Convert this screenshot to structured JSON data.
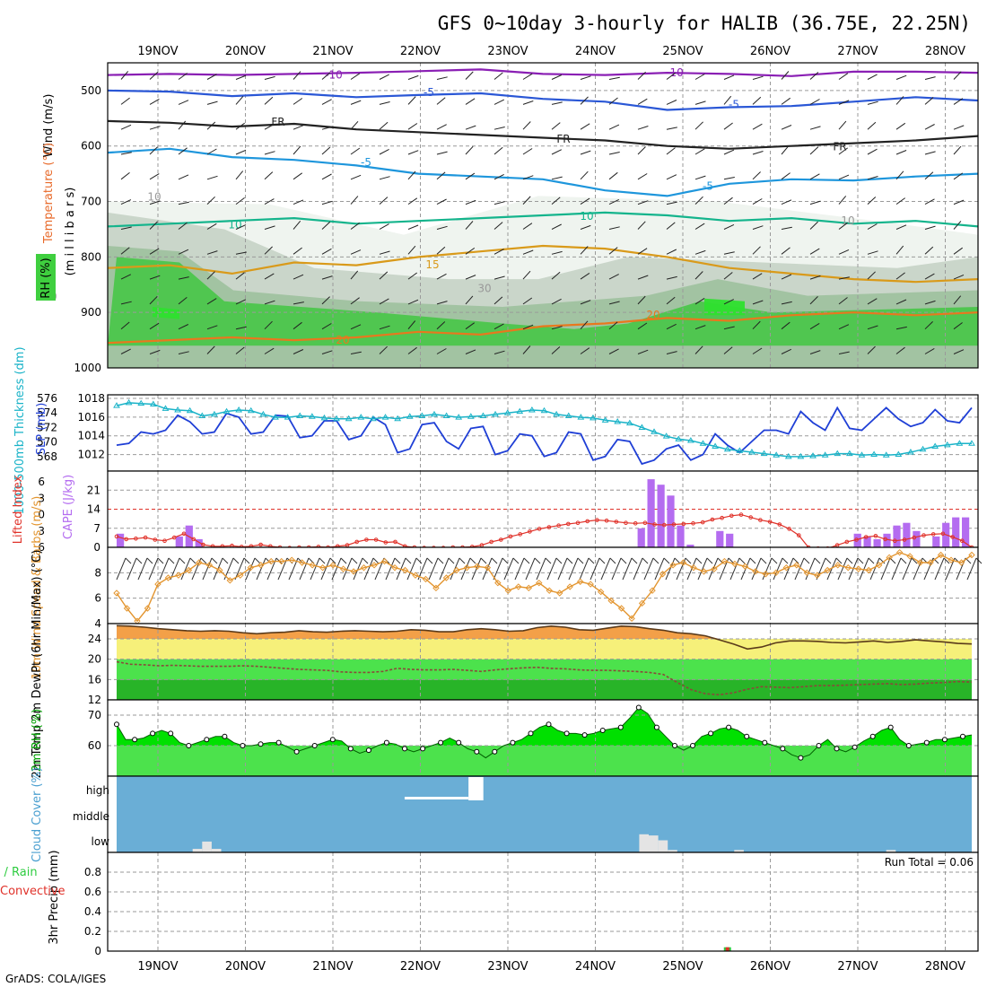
{
  "title": "GFS 0~10day 3-hourly for HALIB (36.75E, 22.25N)",
  "footer": "GrADS: COLA/IGES",
  "dates": [
    "19NOV",
    "20NOV",
    "21NOV",
    "22NOV",
    "23NOV",
    "24NOV",
    "25NOV",
    "26NOV",
    "27NOV",
    "28NOV"
  ],
  "colors": {
    "grid": "#9a9a9a",
    "slp": "#1f3fd6",
    "thickness": "#1ab3c8",
    "li": "#e0322a",
    "cape": "#b46cf0",
    "wind": "#e3952f",
    "temp": "#f3a048",
    "dewfill": "#3fcf3f",
    "rh": "#00e000",
    "cloud": "#6aaed6",
    "rain": "#2ecc40",
    "conv": "#e0322a"
  },
  "chart_data": [
    {
      "panel": "upper-air",
      "type": "contour",
      "ylabel_parts": {
        "wind": "Wind (m/s)",
        "temp": "Temperature (°C)",
        "rh": "RH (%)",
        "unit": "(m i l l i b a r s)"
      },
      "yticks": [
        500,
        600,
        700,
        800,
        900,
        1000
      ],
      "ylim": [
        450,
        1000
      ],
      "isotherm_labels": [
        "-10",
        "-10",
        "-5",
        "-5",
        "FR",
        "FR",
        "FR",
        "-5",
        "-5",
        "10",
        "10",
        "15",
        "20",
        "20",
        "30",
        "30",
        "10",
        "10"
      ],
      "isotherms": [
        {
          "label": "-10",
          "color": "#8a1fb4",
          "p": [
            472,
            470,
            472,
            470,
            468,
            465,
            462,
            470,
            472,
            468,
            470,
            474,
            466,
            466,
            468
          ]
        },
        {
          "label": "-5",
          "color": "#2a57d6",
          "p": [
            500,
            502,
            510,
            505,
            512,
            508,
            505,
            515,
            520,
            535,
            530,
            528,
            520,
            512,
            518
          ]
        },
        {
          "label": "FR",
          "color": "#222222",
          "p": [
            555,
            558,
            565,
            560,
            570,
            575,
            580,
            585,
            590,
            600,
            605,
            600,
            595,
            590,
            582
          ]
        },
        {
          "label": "5",
          "color": "#1e96dc",
          "p": [
            612,
            605,
            620,
            625,
            635,
            650,
            655,
            660,
            680,
            690,
            668,
            660,
            662,
            655,
            650
          ]
        },
        {
          "label": "10",
          "color": "#14b48c",
          "p": [
            745,
            740,
            735,
            730,
            740,
            735,
            730,
            725,
            720,
            725,
            735,
            730,
            740,
            735,
            745
          ]
        },
        {
          "label": "15",
          "color": "#d99a1a",
          "p": [
            820,
            815,
            830,
            810,
            815,
            800,
            790,
            780,
            785,
            800,
            820,
            830,
            840,
            845,
            840
          ]
        },
        {
          "label": "20",
          "color": "#e8781e",
          "p": [
            955,
            950,
            945,
            950,
            945,
            935,
            940,
            925,
            920,
            910,
            915,
            905,
            900,
            905,
            900
          ]
        }
      ],
      "rh_shading_levels": [
        30,
        50,
        70,
        90
      ]
    },
    {
      "panel": "slp-thickness",
      "type": "line",
      "ylabel_left": "1000-500mb Thickness (dm)",
      "ylabel_right": "SLP (mb)",
      "yticks_left": [
        568,
        570,
        572,
        574,
        576
      ],
      "yticks_right": [
        1012,
        1014,
        1016,
        1018
      ],
      "series": [
        {
          "name": "SLP (mb)",
          "values": [
            1013.0,
            1013.2,
            1014.4,
            1014.2,
            1014.6,
            1016.2,
            1015.5,
            1014.2,
            1014.4,
            1016.4,
            1016.0,
            1014.2,
            1014.4,
            1016.2,
            1016.1,
            1013.8,
            1014.0,
            1015.6,
            1015.6,
            1013.6,
            1014.0,
            1016.0,
            1015.2,
            1012.2,
            1012.6,
            1015.2,
            1015.4,
            1013.4,
            1012.6,
            1014.8,
            1015.0,
            1012.0,
            1012.4,
            1014.2,
            1014.0,
            1011.8,
            1012.2,
            1014.4,
            1014.2,
            1011.4,
            1011.8,
            1013.6,
            1013.4,
            1011.0,
            1011.4,
            1012.6,
            1013.0,
            1011.4,
            1012.0,
            1014.2,
            1013.0,
            1012.2,
            1013.4,
            1014.6,
            1014.6,
            1014.2,
            1016.6,
            1015.4,
            1014.6,
            1017.0,
            1014.8,
            1014.6,
            1015.8,
            1017.0,
            1015.8,
            1015.0,
            1015.4,
            1016.8,
            1015.6,
            1015.4,
            1017.0
          ]
        },
        {
          "name": "Thickness (dm)",
          "values": [
            575.0,
            575.4,
            575.3,
            575.2,
            574.6,
            574.4,
            574.3,
            573.6,
            573.8,
            574.2,
            574.4,
            574.3,
            573.8,
            573.4,
            573.4,
            573.6,
            573.5,
            573.3,
            573.2,
            573.2,
            573.4,
            573.2,
            573.4,
            573.2,
            573.5,
            573.6,
            573.8,
            573.6,
            573.4,
            573.5,
            573.6,
            573.8,
            574.0,
            574.2,
            574.4,
            574.3,
            573.8,
            573.6,
            573.4,
            573.3,
            573.0,
            572.8,
            572.6,
            572.0,
            571.4,
            570.8,
            570.4,
            570.2,
            569.8,
            569.4,
            569.0,
            568.8,
            568.6,
            568.4,
            568.2,
            568.0,
            568.0,
            568.1,
            568.2,
            568.4,
            568.4,
            568.2,
            568.3,
            568.2,
            568.3,
            568.6,
            569.0,
            569.4,
            569.6,
            569.8,
            569.8
          ]
        }
      ]
    },
    {
      "panel": "cape-li",
      "type": "bar+line",
      "ylabel_left": "Lifted Index",
      "ylabel_right": "CAPE (J/kg)",
      "yticks_li": [
        -6,
        -3,
        0,
        3,
        6
      ],
      "yticks_cape": [
        0,
        7,
        14,
        21
      ],
      "cape": [
        5,
        0,
        0,
        0,
        0,
        0,
        4,
        8,
        3,
        0,
        0,
        0,
        0,
        0,
        0,
        0,
        0,
        0,
        0,
        0,
        0,
        0,
        0,
        0,
        0,
        0,
        0,
        0,
        0,
        0,
        0,
        0,
        0,
        0,
        0,
        0,
        0,
        0,
        0,
        0,
        0,
        0,
        0,
        0,
        0,
        0,
        0,
        0,
        0,
        0,
        0,
        0,
        0,
        7,
        25,
        23,
        19,
        8,
        1,
        0,
        0,
        6,
        5,
        0,
        0,
        0,
        0,
        0,
        0,
        0,
        0,
        0,
        0,
        0,
        0,
        5,
        4,
        3,
        5,
        8,
        9,
        6,
        0,
        4,
        9,
        11,
        11
      ],
      "li": [
        4,
        4.5,
        4.4,
        4.2,
        4.6,
        4.8,
        4.2,
        3.5,
        4.5,
        5.5,
        5.8,
        5.8,
        5.7,
        5.9,
        5.8,
        5.5,
        5.8,
        6,
        6.1,
        6,
        6,
        5.9,
        6,
        5.8,
        5.6,
        5,
        4.6,
        4.6,
        5.1,
        5,
        5.8,
        6,
        6.1,
        6.1,
        6.1,
        6,
        6,
        5.9,
        5.6,
        5,
        4.6,
        4,
        3.6,
        3.1,
        2.6,
        2.3,
        2,
        1.7,
        1.5,
        1.2,
        1,
        1.1,
        1.3,
        1.5,
        1.6,
        1.5,
        1.8,
        1.9,
        1.8,
        1.7,
        1.6,
        1.4,
        0.9,
        0.6,
        0.2,
        0,
        0.5,
        1,
        1.3,
        1.8,
        2.6,
        3.8,
        6,
        6.2,
        6.2,
        5.6,
        5,
        4.6,
        4.1,
        3.9,
        4.5,
        4.8,
        4.6,
        4.2,
        3.8,
        3.6,
        3.5,
        4.1,
        4.8,
        6
      ]
    },
    {
      "panel": "wind10m",
      "type": "line",
      "ylabel": "10m Wind Speed & Barbs (m/s)",
      "yticks": [
        4,
        6,
        8
      ],
      "ylim": [
        4,
        10
      ],
      "values": [
        6.4,
        5.2,
        4.2,
        5.2,
        7.1,
        7.6,
        7.8,
        8.2,
        8.8,
        8.6,
        8.2,
        7.4,
        7.8,
        8.4,
        8.6,
        8.9,
        8.9,
        9.0,
        8.8,
        8.6,
        8.4,
        8.6,
        8.3,
        8.1,
        8.4,
        8.6,
        8.9,
        8.4,
        8.2,
        7.8,
        7.5,
        6.8,
        7.6,
        8.2,
        8.4,
        8.5,
        8.4,
        7.2,
        6.6,
        6.9,
        6.8,
        7.2,
        6.6,
        6.4,
        6.9,
        7.3,
        7.1,
        6.5,
        5.8,
        5.2,
        4.4,
        5.6,
        6.6,
        7.9,
        8.6,
        8.8,
        8.4,
        8.1,
        8.3,
        8.9,
        8.7,
        8.5,
        8.1,
        7.9,
        8.0,
        8.4,
        8.6,
        8.0,
        7.8,
        8.2,
        8.6,
        8.4,
        8.3,
        8.2,
        8.6,
        9.2,
        9.6,
        9.3,
        8.8,
        8.8,
        9.4,
        9.0,
        8.8,
        9.4
      ]
    },
    {
      "panel": "temperature",
      "type": "area",
      "ylabel": "2m Temp 2m DewPt (6hr Min/Max) (°C)",
      "yticks": [
        12,
        16,
        20,
        24
      ],
      "ylim": [
        12,
        27
      ],
      "series": [
        {
          "name": "2m Temp",
          "values": [
            26.6,
            26.5,
            26.3,
            26.0,
            25.8,
            25.6,
            25.5,
            25.6,
            25.5,
            25.2,
            25.0,
            25.2,
            25.3,
            25.6,
            25.4,
            25.3,
            25.5,
            25.6,
            25.5,
            25.4,
            25.5,
            25.8,
            25.7,
            25.4,
            25.4,
            25.8,
            26.0,
            25.8,
            25.5,
            25.6,
            26.2,
            26.5,
            26.3,
            25.8,
            25.7,
            26.1,
            26.5,
            26.4,
            26.0,
            25.7,
            25.2,
            25.0,
            24.6,
            23.8,
            23.0,
            22.0,
            22.4,
            23.2,
            23.6,
            23.6,
            23.5,
            23.3,
            23.2,
            23.4,
            23.6,
            23.3,
            23.5,
            23.8,
            23.6,
            23.4,
            23.1,
            23.0
          ]
        },
        {
          "name": "2m DewPt",
          "values": [
            19.5,
            19.0,
            18.9,
            18.7,
            18.8,
            18.7,
            18.6,
            18.6,
            18.6,
            18.7,
            18.6,
            18.4,
            18.2,
            18.0,
            17.9,
            17.8,
            17.5,
            17.4,
            17.4,
            17.6,
            18.2,
            18.0,
            17.9,
            17.9,
            18.0,
            17.8,
            17.6,
            17.9,
            18.1,
            18.3,
            18.4,
            18.2,
            18.1,
            17.9,
            17.8,
            17.8,
            17.7,
            17.6,
            17.4,
            17.0,
            15.4,
            14.0,
            13.2,
            13.0,
            13.4,
            14.1,
            14.6,
            14.5,
            14.4,
            14.6,
            14.8,
            14.8,
            14.9,
            15.0,
            15.1,
            15.2,
            15.0,
            15.1,
            15.3,
            15.4,
            15.6,
            15.5
          ]
        }
      ]
    },
    {
      "panel": "rh2m",
      "type": "area",
      "ylabel": "2m RH (%)",
      "yticks": [
        60,
        70
      ],
      "ylim": [
        50,
        75
      ],
      "values": [
        67,
        62,
        62,
        62.5,
        64,
        65,
        64,
        61,
        60,
        61,
        62,
        63,
        63,
        61,
        60,
        60,
        60.5,
        61,
        61,
        59.5,
        58,
        59,
        60,
        61,
        62,
        61.5,
        59,
        57.5,
        58.5,
        60,
        61,
        60.5,
        59,
        58,
        59,
        60,
        61,
        62.5,
        61,
        59,
        58,
        56,
        58,
        60,
        61,
        62,
        64,
        66,
        67,
        65,
        64,
        64,
        63.5,
        64,
        65,
        65.5,
        66,
        69,
        72.5,
        70.5,
        66,
        63,
        60,
        58.5,
        60,
        63,
        64,
        65.5,
        66,
        65,
        63,
        62,
        61,
        60,
        59,
        57,
        56,
        57,
        60,
        62,
        59,
        58,
        59.5,
        61.5,
        63,
        65,
        66,
        62,
        60,
        60.5,
        61,
        62,
        62,
        62.5,
        63,
        63.5
      ]
    },
    {
      "panel": "cloud",
      "type": "bar",
      "ylabel": "Cloud Cover (%)",
      "yticks": [
        "low",
        "middle",
        "high"
      ],
      "low": [
        0,
        0,
        0,
        0,
        0,
        0,
        0,
        0,
        15,
        45,
        15,
        0,
        0,
        0,
        0,
        0,
        0,
        0,
        0,
        0,
        0,
        0,
        0,
        0,
        0,
        0,
        0,
        0,
        0,
        0,
        0,
        0,
        0,
        0,
        0,
        0,
        0,
        0,
        0,
        0,
        0,
        0,
        0,
        0,
        0,
        0,
        0,
        0,
        0,
        0,
        0,
        0,
        0,
        0,
        0,
        75,
        70,
        50,
        10,
        0,
        0,
        0,
        0,
        0,
        0,
        10,
        0,
        0,
        0,
        0,
        0,
        0,
        0,
        0,
        0,
        0,
        0,
        0,
        0,
        0,
        0,
        10,
        0,
        0,
        0,
        0,
        0,
        0,
        0,
        0
      ],
      "high_block": {
        "from": 22.8,
        "to": 23.6,
        "value": 100
      },
      "high_thin": {
        "from": 21.8,
        "to": 22.8,
        "value": 5
      }
    },
    {
      "panel": "precip",
      "type": "bar",
      "ylabel": "3hr Precip (mm)",
      "legend": [
        "Total / Rain",
        "Convective"
      ],
      "run_total": "Run Total = 0.06",
      "yticks": [
        0,
        0.2,
        0.4,
        0.6,
        0.8
      ],
      "ylim": [
        0,
        1.0
      ],
      "bars": [
        {
          "day": 25.5,
          "total": 0.06,
          "convective": 0.06
        }
      ]
    }
  ]
}
